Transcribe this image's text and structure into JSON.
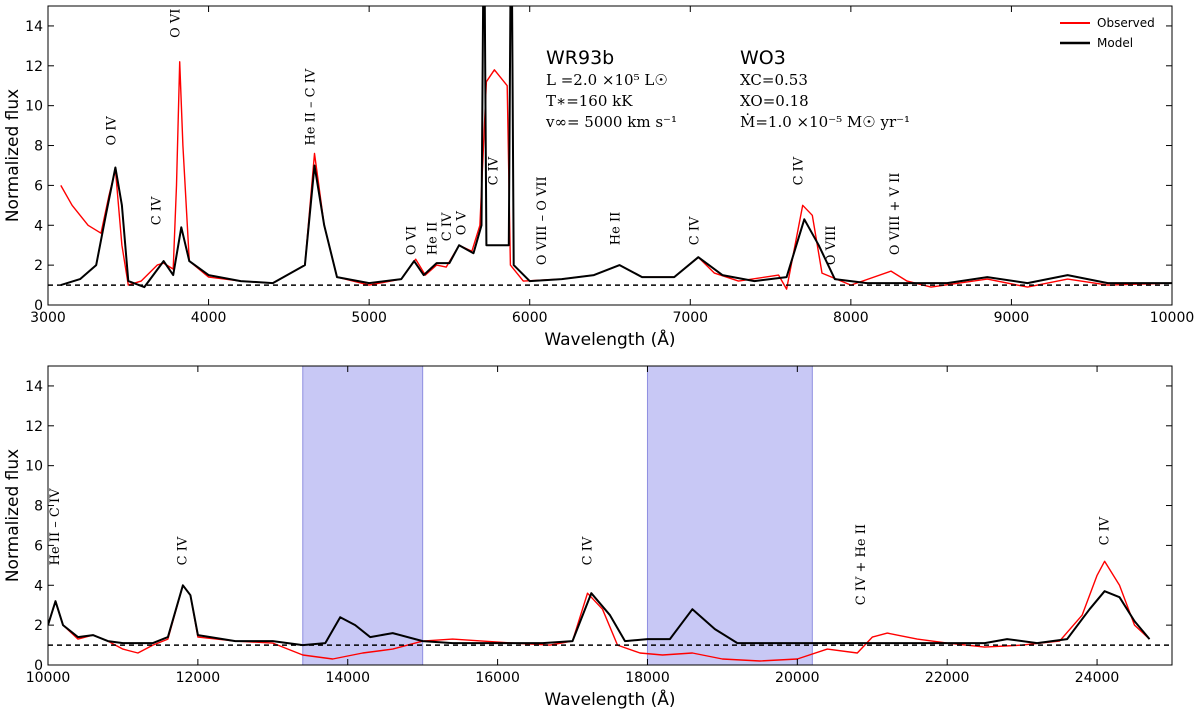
{
  "colors": {
    "observed": "#ff0000",
    "model": "#000000",
    "shade": "#c8c8f5"
  },
  "legend": [
    {
      "label": "Observed",
      "color": "#ff0000"
    },
    {
      "label": "Model",
      "color": "#000000"
    }
  ],
  "info": {
    "star": "WR93b",
    "spectral_type": "WO3",
    "params_left": [
      "L  =2.0 ×10⁵ L☉",
      "T∗=160 kK",
      "v∞= 5000 km s⁻¹"
    ],
    "params_right": [
      "XC=0.53",
      "XO=0.18",
      "Ṁ=1.0 ×10⁻⁵ M☉ yr⁻¹"
    ]
  },
  "chart_data": [
    {
      "type": "line",
      "xlabel": "Wavelength (Å)",
      "ylabel": "Normalized flux",
      "xlim": [
        3000,
        10000
      ],
      "ylim": [
        0,
        15
      ],
      "xticks": [
        3000,
        4000,
        5000,
        6000,
        7000,
        8000,
        9000,
        10000
      ],
      "yticks": [
        0,
        2,
        4,
        6,
        8,
        10,
        12,
        14
      ],
      "reference_line": 1.0,
      "shaded_regions": [],
      "series": [
        {
          "name": "Observed",
          "points": [
            [
              3080,
              6.0
            ],
            [
              3150,
              5.0
            ],
            [
              3250,
              4.0
            ],
            [
              3330,
              3.6
            ],
            [
              3380,
              5.5
            ],
            [
              3420,
              6.8
            ],
            [
              3460,
              3.0
            ],
            [
              3500,
              1.0
            ],
            [
              3580,
              1.2
            ],
            [
              3680,
              2.0
            ],
            [
              3720,
              2.1
            ],
            [
              3780,
              1.8
            ],
            [
              3800,
              6.0
            ],
            [
              3820,
              12.2
            ],
            [
              3840,
              8.0
            ],
            [
              3880,
              2.2
            ],
            [
              4000,
              1.4
            ],
            [
              4200,
              1.2
            ],
            [
              4400,
              1.1
            ],
            [
              4600,
              2.0
            ],
            [
              4660,
              7.6
            ],
            [
              4720,
              4.0
            ],
            [
              4800,
              1.4
            ],
            [
              5000,
              1.0
            ],
            [
              5200,
              1.3
            ],
            [
              5290,
              2.3
            ],
            [
              5350,
              1.5
            ],
            [
              5420,
              2.0
            ],
            [
              5480,
              1.9
            ],
            [
              5560,
              3.0
            ],
            [
              5640,
              2.7
            ],
            [
              5690,
              4.0
            ],
            [
              5730,
              11.2
            ],
            [
              5780,
              11.8
            ],
            [
              5860,
              11.0
            ],
            [
              5880,
              2.0
            ],
            [
              5960,
              1.2
            ],
            [
              6200,
              1.3
            ],
            [
              6400,
              1.5
            ],
            [
              6560,
              2.0
            ],
            [
              6700,
              1.4
            ],
            [
              6900,
              1.4
            ],
            [
              7050,
              2.4
            ],
            [
              7150,
              1.6
            ],
            [
              7300,
              1.2
            ],
            [
              7550,
              1.5
            ],
            [
              7600,
              0.8
            ],
            [
              7700,
              5.0
            ],
            [
              7760,
              4.5
            ],
            [
              7820,
              1.6
            ],
            [
              8000,
              1.0
            ],
            [
              8250,
              1.7
            ],
            [
              8350,
              1.2
            ],
            [
              8500,
              0.9
            ],
            [
              8850,
              1.3
            ],
            [
              9100,
              0.9
            ],
            [
              9350,
              1.3
            ],
            [
              9600,
              1.0
            ],
            [
              10000,
              1.1
            ]
          ]
        },
        {
          "name": "Model",
          "points": [
            [
              3080,
              1.0
            ],
            [
              3200,
              1.3
            ],
            [
              3300,
              2.0
            ],
            [
              3360,
              4.5
            ],
            [
              3420,
              6.9
            ],
            [
              3460,
              5.0
            ],
            [
              3500,
              1.2
            ],
            [
              3600,
              0.9
            ],
            [
              3720,
              2.2
            ],
            [
              3780,
              1.5
            ],
            [
              3830,
              3.9
            ],
            [
              3880,
              2.2
            ],
            [
              4000,
              1.5
            ],
            [
              4200,
              1.2
            ],
            [
              4400,
              1.1
            ],
            [
              4600,
              2.0
            ],
            [
              4660,
              7.0
            ],
            [
              4720,
              4.0
            ],
            [
              4800,
              1.4
            ],
            [
              5000,
              1.1
            ],
            [
              5200,
              1.3
            ],
            [
              5280,
              2.2
            ],
            [
              5340,
              1.5
            ],
            [
              5420,
              2.1
            ],
            [
              5500,
              2.1
            ],
            [
              5560,
              3.0
            ],
            [
              5650,
              2.6
            ],
            [
              5700,
              4.0
            ],
            [
              5710,
              15.0
            ],
            [
              5720,
              15.0
            ],
            [
              5730,
              3.0
            ],
            [
              5870,
              3.0
            ],
            [
              5880,
              15.0
            ],
            [
              5890,
              15.0
            ],
            [
              5900,
              2.0
            ],
            [
              6000,
              1.2
            ],
            [
              6200,
              1.3
            ],
            [
              6400,
              1.5
            ],
            [
              6560,
              2.0
            ],
            [
              6700,
              1.4
            ],
            [
              6900,
              1.4
            ],
            [
              7050,
              2.4
            ],
            [
              7200,
              1.5
            ],
            [
              7400,
              1.2
            ],
            [
              7600,
              1.4
            ],
            [
              7710,
              4.3
            ],
            [
              7800,
              3.0
            ],
            [
              7900,
              1.3
            ],
            [
              8100,
              1.1
            ],
            [
              8300,
              1.1
            ],
            [
              8600,
              1.1
            ],
            [
              8850,
              1.4
            ],
            [
              9100,
              1.1
            ],
            [
              9350,
              1.5
            ],
            [
              9600,
              1.1
            ],
            [
              10000,
              1.1
            ]
          ]
        }
      ],
      "line_labels": [
        {
          "text": "O IV",
          "x": 3420,
          "y": 8.0
        },
        {
          "text": "C IV",
          "x": 3700,
          "y": 4.0
        },
        {
          "text": "O VI",
          "x": 3820,
          "y": 13.4
        },
        {
          "text": "He II  – C IV",
          "x": 4660,
          "y": 8.0
        },
        {
          "text": "O VI",
          "x": 5290,
          "y": 2.5
        },
        {
          "text": "He II",
          "x": 5420,
          "y": 2.5
        },
        {
          "text": "C IV",
          "x": 5510,
          "y": 3.2
        },
        {
          "text": "O V",
          "x": 5600,
          "y": 3.5
        },
        {
          "text": "C IV",
          "x": 5800,
          "y": 6.0
        },
        {
          "text": "O VIII  – O VII",
          "x": 6100,
          "y": 2.0
        },
        {
          "text": "He II",
          "x": 6560,
          "y": 3.0
        },
        {
          "text": "C IV",
          "x": 7050,
          "y": 3.0
        },
        {
          "text": "C IV",
          "x": 7700,
          "y": 6.0
        },
        {
          "text": "O VIII",
          "x": 7900,
          "y": 2.0
        },
        {
          "text": "O VIII  + V II",
          "x": 8300,
          "y": 2.5
        }
      ]
    },
    {
      "type": "line",
      "xlabel": "Wavelength (Å)",
      "ylabel": "Normalized flux",
      "xlim": [
        10000,
        25000
      ],
      "ylim": [
        0,
        15
      ],
      "xticks": [
        10000,
        12000,
        14000,
        16000,
        18000,
        20000,
        22000,
        24000
      ],
      "yticks": [
        0,
        2,
        4,
        6,
        8,
        10,
        12,
        14
      ],
      "reference_line": 1.0,
      "shaded_regions": [
        [
          13400,
          15000
        ],
        [
          18000,
          20200
        ]
      ],
      "series": [
        {
          "name": "Observed",
          "points": [
            [
              10000,
              2.0
            ],
            [
              10100,
              3.2
            ],
            [
              10200,
              2.0
            ],
            [
              10400,
              1.3
            ],
            [
              10600,
              1.5
            ],
            [
              10800,
              1.2
            ],
            [
              11000,
              0.8
            ],
            [
              11200,
              0.6
            ],
            [
              11400,
              1.0
            ],
            [
              11600,
              1.3
            ],
            [
              11800,
              4.0
            ],
            [
              11900,
              3.5
            ],
            [
              12000,
              1.4
            ],
            [
              12500,
              1.2
            ],
            [
              13000,
              1.1
            ],
            [
              13400,
              0.5
            ],
            [
              13800,
              0.3
            ],
            [
              14200,
              0.6
            ],
            [
              14600,
              0.8
            ],
            [
              15000,
              1.2
            ],
            [
              15400,
              1.3
            ],
            [
              15800,
              1.2
            ],
            [
              16200,
              1.1
            ],
            [
              16700,
              1.0
            ],
            [
              17000,
              1.2
            ],
            [
              17200,
              3.6
            ],
            [
              17400,
              2.8
            ],
            [
              17600,
              1.0
            ],
            [
              17900,
              0.6
            ],
            [
              18200,
              0.5
            ],
            [
              18600,
              0.6
            ],
            [
              19000,
              0.3
            ],
            [
              19500,
              0.2
            ],
            [
              20000,
              0.3
            ],
            [
              20400,
              0.8
            ],
            [
              20800,
              0.6
            ],
            [
              21000,
              1.4
            ],
            [
              21200,
              1.6
            ],
            [
              21600,
              1.3
            ],
            [
              22000,
              1.1
            ],
            [
              22500,
              0.9
            ],
            [
              23000,
              1.0
            ],
            [
              23500,
              1.2
            ],
            [
              23800,
              2.5
            ],
            [
              24000,
              4.5
            ],
            [
              24100,
              5.2
            ],
            [
              24300,
              4.0
            ],
            [
              24500,
              2.0
            ],
            [
              24700,
              1.3
            ]
          ]
        },
        {
          "name": "Model",
          "points": [
            [
              10000,
              2.0
            ],
            [
              10100,
              3.2
            ],
            [
              10200,
              2.0
            ],
            [
              10400,
              1.4
            ],
            [
              10600,
              1.5
            ],
            [
              10800,
              1.2
            ],
            [
              11000,
              1.1
            ],
            [
              11400,
              1.1
            ],
            [
              11600,
              1.4
            ],
            [
              11800,
              4.0
            ],
            [
              11900,
              3.5
            ],
            [
              12000,
              1.5
            ],
            [
              12500,
              1.2
            ],
            [
              13000,
              1.2
            ],
            [
              13400,
              1.0
            ],
            [
              13700,
              1.1
            ],
            [
              13900,
              2.4
            ],
            [
              14100,
              2.0
            ],
            [
              14300,
              1.4
            ],
            [
              14600,
              1.6
            ],
            [
              15000,
              1.2
            ],
            [
              15400,
              1.1
            ],
            [
              16000,
              1.1
            ],
            [
              16600,
              1.1
            ],
            [
              17000,
              1.2
            ],
            [
              17250,
              3.6
            ],
            [
              17500,
              2.5
            ],
            [
              17700,
              1.2
            ],
            [
              18000,
              1.3
            ],
            [
              18300,
              1.3
            ],
            [
              18600,
              2.8
            ],
            [
              18900,
              1.8
            ],
            [
              19200,
              1.1
            ],
            [
              19600,
              1.1
            ],
            [
              20000,
              1.1
            ],
            [
              20400,
              1.1
            ],
            [
              21000,
              1.1
            ],
            [
              21500,
              1.1
            ],
            [
              22000,
              1.1
            ],
            [
              22500,
              1.1
            ],
            [
              22800,
              1.3
            ],
            [
              23200,
              1.1
            ],
            [
              23600,
              1.3
            ],
            [
              23900,
              2.8
            ],
            [
              24100,
              3.7
            ],
            [
              24300,
              3.4
            ],
            [
              24500,
              2.2
            ],
            [
              24700,
              1.3
            ]
          ]
        }
      ],
      "line_labels": [
        {
          "text": "He II  – C IV",
          "x": 10150,
          "y": 5.0
        },
        {
          "text": "C IV",
          "x": 11850,
          "y": 5.0
        },
        {
          "text": "C IV",
          "x": 17250,
          "y": 5.0
        },
        {
          "text": "C IV  + He II",
          "x": 20900,
          "y": 3.0
        },
        {
          "text": "C IV",
          "x": 24150,
          "y": 6.0
        }
      ]
    }
  ]
}
